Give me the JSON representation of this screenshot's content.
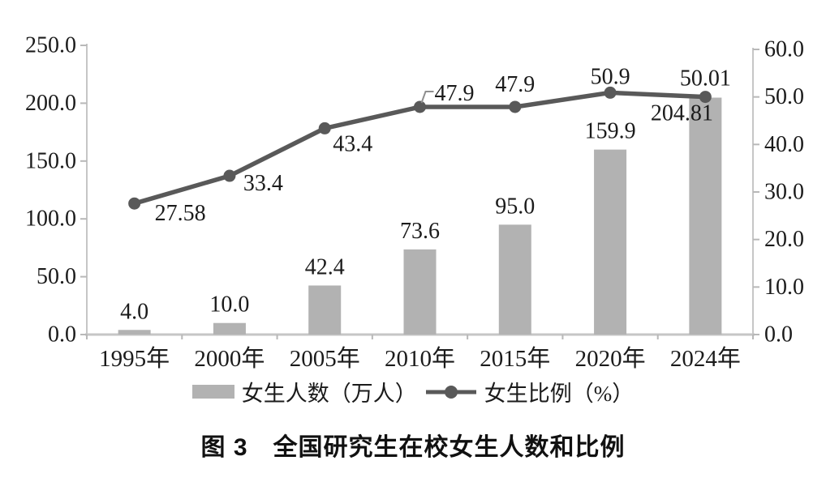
{
  "chart_data": {
    "type": "combo",
    "title": "图 3　全国研究生在校女生人数和比例",
    "categories": [
      "1995年",
      "2000年",
      "2005年",
      "2010年",
      "2015年",
      "2020年",
      "2024年"
    ],
    "series": [
      {
        "name": "女生人数（万人）",
        "chart": "bar",
        "axis": "left",
        "values": [
          4.0,
          10.0,
          42.4,
          73.6,
          95.0,
          159.9,
          204.81
        ],
        "labels": [
          "4.0",
          "10.0",
          "42.4",
          "73.6",
          "95.0",
          "159.9",
          "204.81"
        ]
      },
      {
        "name": "女生比例（%）",
        "chart": "line",
        "axis": "right",
        "values": [
          27.58,
          33.4,
          43.4,
          47.9,
          47.9,
          50.9,
          50.01
        ],
        "labels": [
          "27.58",
          "33.4",
          "43.4",
          "47.9",
          "47.9",
          "50.9",
          "50.01"
        ]
      }
    ],
    "left_axis": {
      "min": 0,
      "max": 250,
      "step": 50,
      "ticks": [
        "250.0",
        "200.0",
        "150.0",
        "100.0",
        "50.0",
        "0.0"
      ]
    },
    "right_axis": {
      "min": 0,
      "max": 60,
      "step": 10,
      "ticks": [
        "60.0",
        "50.0",
        "40.0",
        "30.0",
        "20.0",
        "10.0",
        "0.0"
      ]
    },
    "grid": false,
    "legend_position": "bottom",
    "colors": {
      "bar": "#b2b2b2",
      "line": "#595959",
      "axis_line": "#c6c6c6",
      "tick": "#b8b8b8",
      "text": "#1b1b1b",
      "leader": "#8f8f8f"
    }
  }
}
